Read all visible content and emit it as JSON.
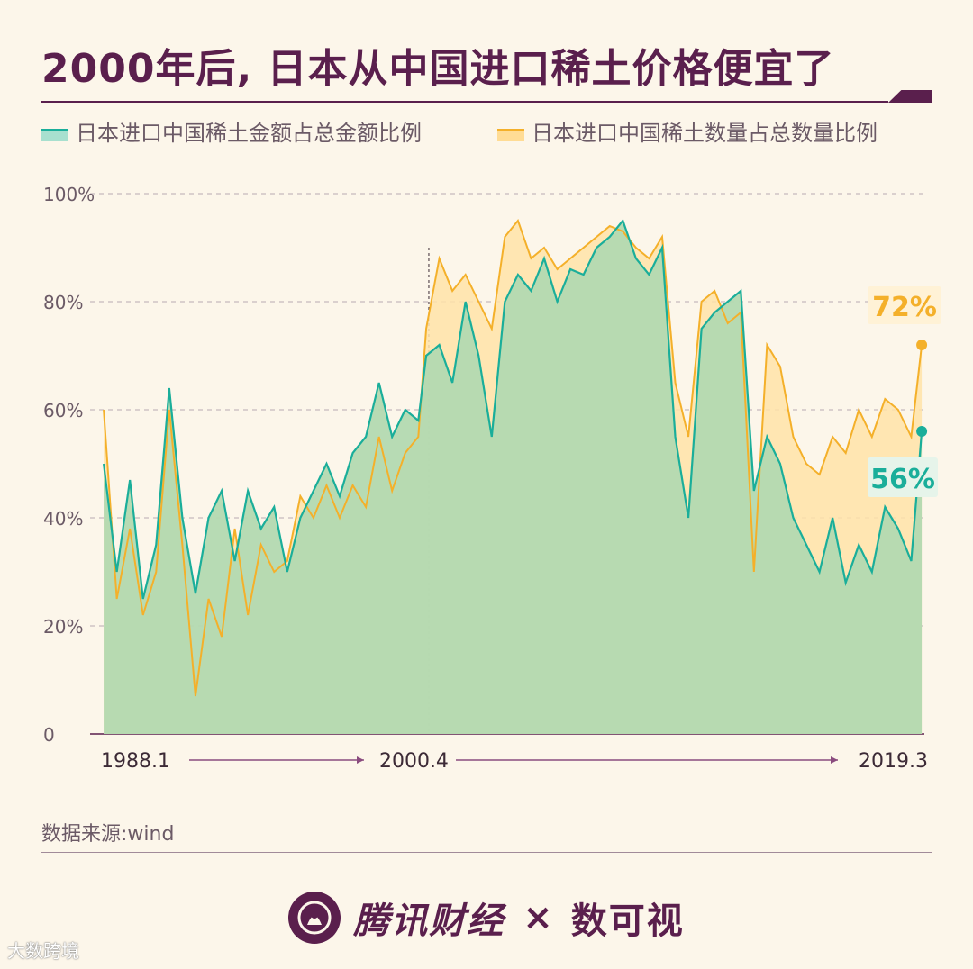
{
  "title": "2000年后, 日本从中国进口稀土价格便宜了",
  "source": "数据来源:wind",
  "footer": {
    "brand": "腾讯财经",
    "times": "×",
    "partner": "数可视"
  },
  "corner_mark": "大数跨境",
  "colors": {
    "teal": "#1aae9a",
    "orange": "#f4b02a",
    "area": "#b3d9b1",
    "accent": "#5a1f4d"
  },
  "chart_data": {
    "type": "line",
    "x_start": "1988.1",
    "x_end": "2019.3",
    "marker": "2000.4",
    "x_tick_labels": [
      "1988.1",
      "2000.4",
      "2019.3"
    ],
    "y_ticks": [
      "0",
      "20%",
      "40%",
      "60%",
      "80%",
      "100%"
    ],
    "ylim": [
      0,
      100
    ],
    "grid": true,
    "legend": "top-left",
    "series": [
      {
        "name": "日本进口中国稀土金额占总金额比例",
        "color": "#1aae9a",
        "last_label": "56%",
        "x": [
          1988.0,
          1988.5,
          1989.0,
          1989.5,
          1990.0,
          1990.5,
          1991.0,
          1991.5,
          1992.0,
          1992.5,
          1993.0,
          1993.5,
          1994.0,
          1994.5,
          1995.0,
          1995.5,
          1996.0,
          1996.5,
          1997.0,
          1997.5,
          1998.0,
          1998.5,
          1999.0,
          1999.5,
          2000.0,
          2000.3,
          2000.8,
          2001.3,
          2001.8,
          2002.3,
          2002.8,
          2003.3,
          2003.8,
          2004.3,
          2004.8,
          2005.3,
          2005.8,
          2006.3,
          2006.8,
          2007.3,
          2007.8,
          2008.3,
          2008.8,
          2009.3,
          2009.8,
          2010.3,
          2010.8,
          2011.3,
          2011.8,
          2012.3,
          2012.8,
          2013.3,
          2013.8,
          2014.3,
          2014.8,
          2015.3,
          2015.8,
          2016.3,
          2016.8,
          2017.3,
          2017.8,
          2018.3,
          2018.8,
          2019.2
        ],
        "values": [
          50,
          30,
          47,
          25,
          35,
          64,
          40,
          26,
          40,
          45,
          32,
          45,
          38,
          42,
          30,
          40,
          45,
          50,
          44,
          52,
          55,
          65,
          55,
          60,
          58,
          70,
          72,
          65,
          80,
          70,
          55,
          80,
          85,
          82,
          88,
          80,
          86,
          85,
          90,
          92,
          95,
          88,
          85,
          90,
          55,
          40,
          75,
          78,
          80,
          82,
          45,
          55,
          50,
          40,
          35,
          30,
          40,
          28,
          35,
          30,
          42,
          38,
          32,
          56
        ]
      },
      {
        "name": "日本进口中国稀土数量占总数量比例",
        "color": "#f4b02a",
        "last_label": "72%",
        "x": [
          1988.0,
          1988.5,
          1989.0,
          1989.5,
          1990.0,
          1990.5,
          1991.0,
          1991.5,
          1992.0,
          1992.5,
          1993.0,
          1993.5,
          1994.0,
          1994.5,
          1995.0,
          1995.5,
          1996.0,
          1996.5,
          1997.0,
          1997.5,
          1998.0,
          1998.5,
          1999.0,
          1999.5,
          2000.0,
          2000.3,
          2000.8,
          2001.3,
          2001.8,
          2002.3,
          2002.8,
          2003.3,
          2003.8,
          2004.3,
          2004.8,
          2005.3,
          2005.8,
          2006.3,
          2006.8,
          2007.3,
          2007.8,
          2008.3,
          2008.8,
          2009.3,
          2009.8,
          2010.3,
          2010.8,
          2011.3,
          2011.8,
          2012.3,
          2012.8,
          2013.3,
          2013.8,
          2014.3,
          2014.8,
          2015.3,
          2015.8,
          2016.3,
          2016.8,
          2017.3,
          2017.8,
          2018.3,
          2018.8,
          2019.2
        ],
        "values": [
          60,
          25,
          38,
          22,
          30,
          60,
          35,
          7,
          25,
          18,
          38,
          22,
          35,
          30,
          32,
          44,
          40,
          46,
          40,
          46,
          42,
          55,
          45,
          52,
          55,
          75,
          88,
          82,
          85,
          80,
          75,
          92,
          95,
          88,
          90,
          86,
          88,
          90,
          92,
          94,
          93,
          90,
          88,
          92,
          65,
          55,
          80,
          82,
          76,
          78,
          30,
          72,
          68,
          55,
          50,
          48,
          55,
          52,
          60,
          55,
          62,
          60,
          55,
          72
        ]
      }
    ]
  }
}
